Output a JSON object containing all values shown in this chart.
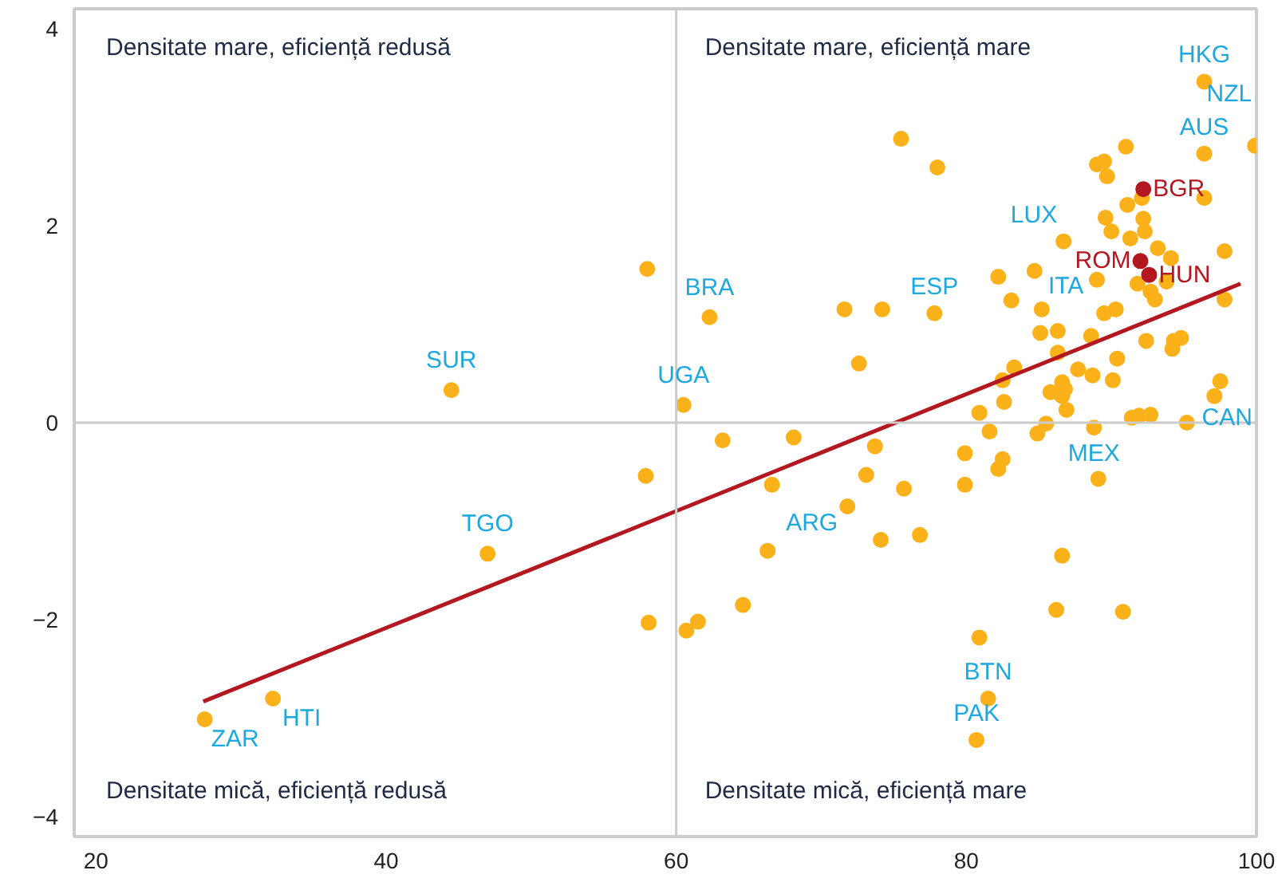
{
  "chart_data": {
    "type": "scatter",
    "xlim": [
      18.5,
      100
    ],
    "ylim": [
      -4.2,
      4.2
    ],
    "xticks": [
      20,
      40,
      60,
      80,
      100
    ],
    "yticks": [
      {
        "value": -4,
        "label": "−4"
      },
      {
        "value": -2,
        "label": "−2"
      },
      0,
      2,
      4
    ],
    "grid": false,
    "marker": "circle",
    "ref_lines": [
      {
        "axis": "x",
        "value": 60,
        "color": "#cccccc"
      },
      {
        "axis": "y",
        "value": 0,
        "color": "#cccccc"
      }
    ],
    "series": [
      {
        "color": "#fbb11a",
        "x": [
          96.4,
          75.5,
          78.0,
          91.0,
          89.0,
          89.5,
          89.7,
          96.4,
          99.9,
          92.1,
          91.1,
          96.4,
          89.6,
          92.2,
          90.0,
          92.3,
          91.3,
          86.7,
          93.2,
          94.1,
          97.8,
          84.7,
          82.2,
          89.0,
          91.8,
          93.8,
          92.7,
          93.0,
          97.8,
          74.2,
          77.8,
          83.1,
          85.2,
          89.5,
          90.3,
          85.1,
          86.3,
          88.6,
          92.4,
          94.3,
          94.8,
          94.2,
          72.6,
          83.3,
          82.5,
          82.6,
          87.7,
          88.7,
          90.4,
          90.1,
          86.3,
          85.8,
          86.6,
          86.8,
          86.6,
          86.9,
          80.9,
          97.5,
          97.1,
          91.4,
          91.9,
          92.7,
          95.2,
          85.5,
          84.9,
          88.8,
          81.6,
          73.7,
          79.9,
          82.5,
          82.2,
          73.1,
          75.7,
          79.9,
          89.1,
          74.1,
          76.8,
          86.6,
          86.2,
          90.8,
          80.9,
          81.5,
          80.7,
          58.0,
          62.3,
          71.6,
          60.5,
          63.2,
          68.1,
          57.9,
          66.6,
          71.8,
          66.3,
          64.6,
          58.1,
          61.5,
          60.7,
          44.5,
          47.0,
          32.2,
          27.5
        ],
        "values": [
          3.46,
          2.88,
          2.59,
          2.8,
          2.62,
          2.65,
          2.5,
          2.73,
          2.81,
          2.28,
          2.21,
          2.28,
          2.08,
          2.07,
          1.94,
          1.94,
          1.87,
          1.84,
          1.77,
          1.67,
          1.74,
          1.54,
          1.48,
          1.45,
          1.41,
          1.43,
          1.33,
          1.25,
          1.25,
          1.15,
          1.11,
          1.24,
          1.15,
          1.11,
          1.15,
          0.91,
          0.93,
          0.88,
          0.83,
          0.83,
          0.86,
          0.75,
          0.6,
          0.56,
          0.43,
          0.21,
          0.54,
          0.48,
          0.65,
          0.43,
          0.71,
          0.31,
          0.41,
          0.34,
          0.27,
          0.13,
          0.1,
          0.42,
          0.27,
          0.05,
          0.07,
          0.08,
          0.0,
          -0.01,
          -0.11,
          -0.05,
          -0.09,
          -0.24,
          -0.31,
          -0.37,
          -0.47,
          -0.53,
          -0.67,
          -0.63,
          -0.57,
          -1.19,
          -1.14,
          -1.35,
          -1.9,
          -1.92,
          -2.18,
          -2.8,
          -3.22,
          1.56,
          1.07,
          1.15,
          0.18,
          -0.18,
          -0.15,
          -0.54,
          -0.63,
          -0.85,
          -1.3,
          -1.85,
          -2.03,
          -2.02,
          -2.11,
          0.33,
          -1.33,
          -2.8,
          -3.01
        ]
      },
      {
        "type": "scatter",
        "color": "#b3171f",
        "x": [
          92.2,
          92.0,
          92.6
        ],
        "values": [
          2.37,
          1.64,
          1.5
        ]
      },
      {
        "type": "line",
        "marker": "none",
        "color": "#b3171f",
        "x": [
          27.4,
          98.9
        ],
        "values": [
          -2.83,
          1.41
        ]
      }
    ],
    "annotations": [
      "Densitate mare, eficiență redusă",
      "Densitate mare, eficiență mare",
      "Densitate mică, eficiență redusă",
      "Densitate mică, eficiență mare",
      {
        "text": "HKG",
        "x": 96.4,
        "y": 3.46
      },
      {
        "text": "AUS",
        "x": 96.4,
        "y": 2.73
      },
      {
        "text": "NZL",
        "x": 99.9,
        "y": 2.81
      },
      {
        "text": "BGR",
        "x": 92.2,
        "y": 2.37
      },
      {
        "text": "LUX",
        "x": 86.7,
        "y": 1.84
      },
      {
        "text": "ROM",
        "x": 92.0,
        "y": 1.64
      },
      {
        "text": "HUN",
        "x": 92.6,
        "y": 1.5
      },
      {
        "text": "ESP",
        "x": 77.8,
        "y": 1.11
      },
      {
        "text": "ITA",
        "x": 85.2,
        "y": 1.15
      },
      {
        "text": "BRA",
        "x": 62.3,
        "y": 1.07
      },
      {
        "text": "UGA",
        "x": 60.5,
        "y": 0.18
      },
      {
        "text": "SUR",
        "x": 44.5,
        "y": 0.33
      },
      {
        "text": "CAN",
        "x": 97.1,
        "y": 0.27
      },
      {
        "text": "MEX",
        "x": 88.8,
        "y": -0.05
      },
      {
        "text": "ARG",
        "x": 71.8,
        "y": -0.85
      },
      {
        "text": "TGO",
        "x": 47.0,
        "y": -1.33
      },
      {
        "text": "BTN",
        "x": 81.5,
        "y": -2.8
      },
      {
        "text": "PAK",
        "x": 80.7,
        "y": -3.22
      },
      {
        "text": "HTI",
        "x": 32.2,
        "y": -2.8
      },
      {
        "text": "ZAR",
        "x": 27.5,
        "y": -3.01
      }
    ]
  }
}
